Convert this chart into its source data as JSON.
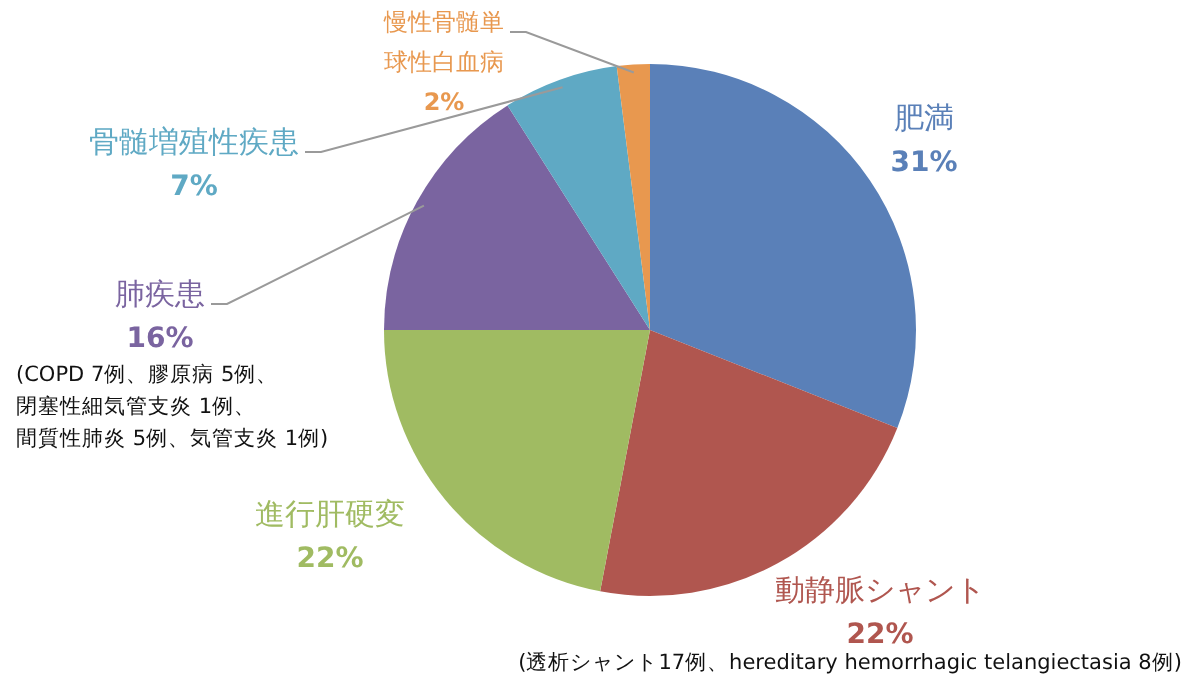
{
  "chart_data": {
    "type": "pie",
    "categories": [
      "肥満",
      "動静脈シャント",
      "進行肝硬変",
      "肺疾患",
      "骨髄増殖性疾患",
      "慢性骨髄単球性白血病"
    ],
    "values": [
      31,
      22,
      22,
      16,
      7,
      2
    ],
    "colors": [
      "#5a80b8",
      "#b0564f",
      "#a0bb62",
      "#7a64a0",
      "#5fa9c4",
      "#e8984f"
    ],
    "value_labels": [
      "31%",
      "22%",
      "22%",
      "16%",
      "7%",
      "2%"
    ],
    "legend": false,
    "annotations": [
      "(COPD 7例、膠原病 5例、閉塞性細気管支炎 1例、間質性肺炎 5例、気管支炎 1例)",
      "(透析シャント17例、hereditary hemorrhagic telangiectasia 8例)"
    ]
  }
}
